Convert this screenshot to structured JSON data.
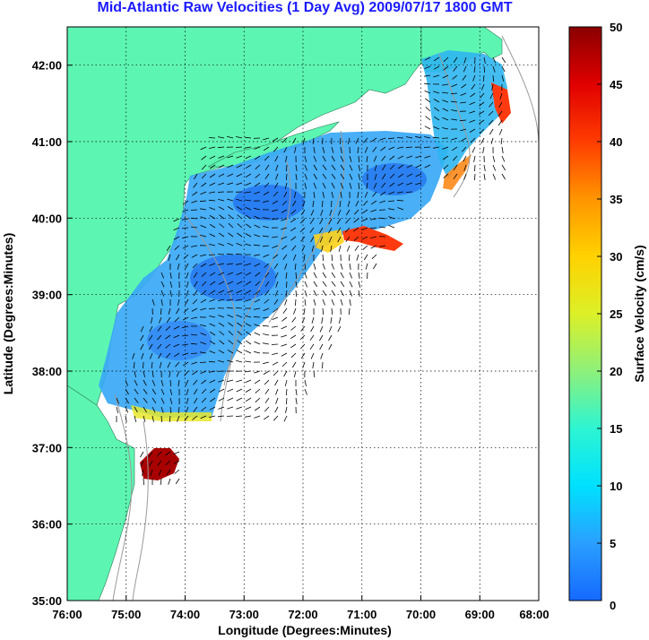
{
  "title": "Mid-Atlantic Raw Velocities (1 Day Avg) 2009/07/17 1800 GMT",
  "chart_data": {
    "type": "heatmap",
    "title": "Mid-Atlantic Raw Velocities (1 Day Avg) 2009/07/17 1800 GMT",
    "xlabel": "Longitude (Degrees:Minutes)",
    "ylabel": "Latitude (Degrees:Minutes)",
    "x_tick_labels": [
      "76:00",
      "75:00",
      "74:00",
      "73:00",
      "72:00",
      "71:00",
      "70:00",
      "69:00",
      "68:00"
    ],
    "y_tick_labels": [
      "35:00",
      "36:00",
      "37:00",
      "38:00",
      "39:00",
      "40:00",
      "41:00",
      "42:00"
    ],
    "xlim": [
      -76,
      -68
    ],
    "ylim": [
      35,
      42.5
    ],
    "grid": true,
    "colorbar": {
      "label": "Surface Velocity (cm/s)",
      "min": 0,
      "max": 50,
      "tick_labels": [
        "0",
        "5",
        "10",
        "15",
        "20",
        "25",
        "30",
        "35",
        "40",
        "45",
        "50"
      ]
    },
    "colors": {
      "land": "#5df5b2",
      "ocean": "#ffffff",
      "isobath": "#9a9a9a",
      "title": "#1a1aff"
    }
  }
}
